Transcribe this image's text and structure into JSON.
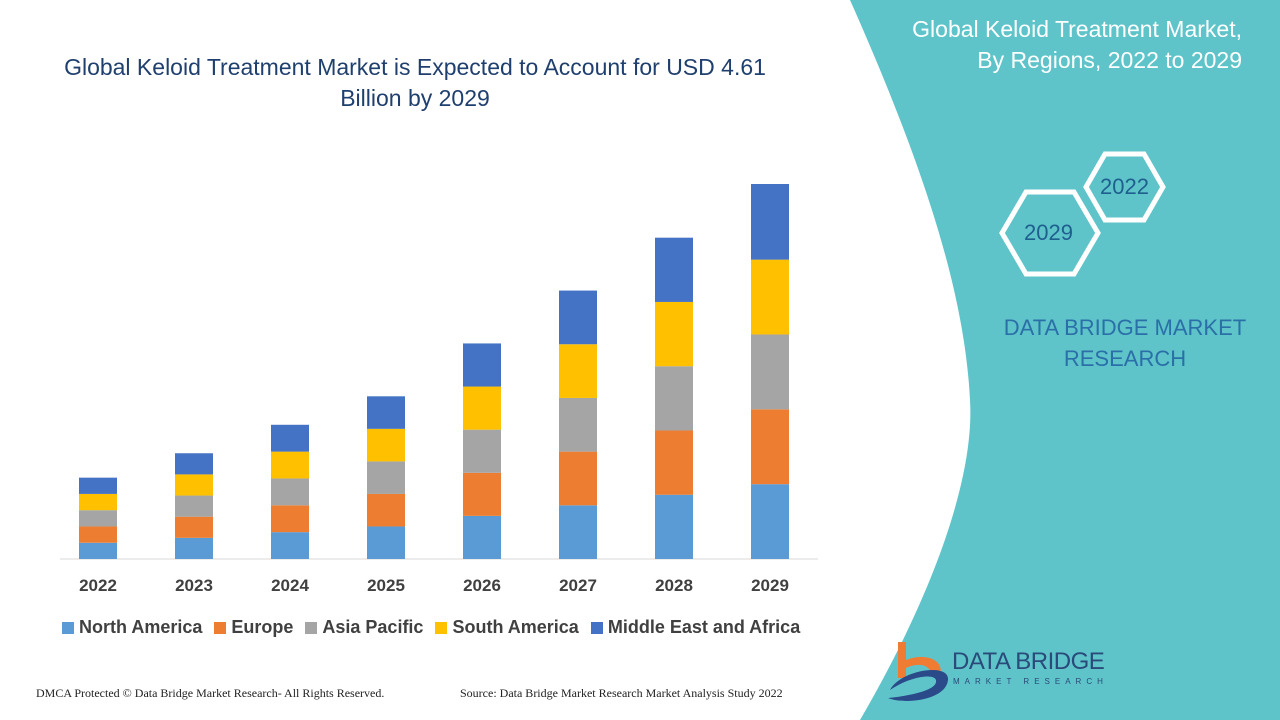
{
  "title": "Global Keloid Treatment Market is Expected to Account for USD 4.61 Billion by 2029",
  "side_panel": {
    "title": "Global Keloid Treatment Market, By Regions, 2022 to 2029",
    "hex_start": "2022",
    "hex_end": "2029",
    "brand": "DATA BRIDGE MARKET RESEARCH"
  },
  "logo": {
    "name": "DATA BRIDGE",
    "tagline": "MARKET RESEARCH"
  },
  "footer": {
    "left": "DMCA Protected © Data Bridge Market Research- All Rights Reserved.",
    "right": "Source: Data Bridge Market Research Market Analysis Study 2022"
  },
  "colors": {
    "teal": "#5ec4c9",
    "title": "#1f3f6e"
  },
  "chart_data": {
    "type": "bar",
    "stacked": true,
    "title": "Global Keloid Treatment Market is Expected to Account for USD 4.61 Billion by 2029",
    "xlabel": "",
    "ylabel": "",
    "ylim": [
      0,
      4.61
    ],
    "grid": false,
    "legend": "bottom",
    "categories": [
      "2022",
      "2023",
      "2024",
      "2025",
      "2026",
      "2027",
      "2028",
      "2029"
    ],
    "series": [
      {
        "name": "North America",
        "color": "#5b9bd5",
        "values": [
          0.2,
          0.26,
          0.33,
          0.4,
          0.53,
          0.66,
          0.79,
          0.92
        ]
      },
      {
        "name": "Europe",
        "color": "#ed7d31",
        "values": [
          0.2,
          0.26,
          0.33,
          0.4,
          0.53,
          0.66,
          0.79,
          0.92
        ]
      },
      {
        "name": "Asia Pacific",
        "color": "#a5a5a5",
        "values": [
          0.2,
          0.26,
          0.33,
          0.4,
          0.53,
          0.66,
          0.79,
          0.92
        ]
      },
      {
        "name": "South America",
        "color": "#ffc000",
        "values": [
          0.2,
          0.26,
          0.33,
          0.4,
          0.53,
          0.66,
          0.79,
          0.92
        ]
      },
      {
        "name": "Middle East and Africa",
        "color": "#4472c4",
        "values": [
          0.2,
          0.26,
          0.33,
          0.4,
          0.53,
          0.66,
          0.79,
          0.93
        ]
      }
    ]
  }
}
